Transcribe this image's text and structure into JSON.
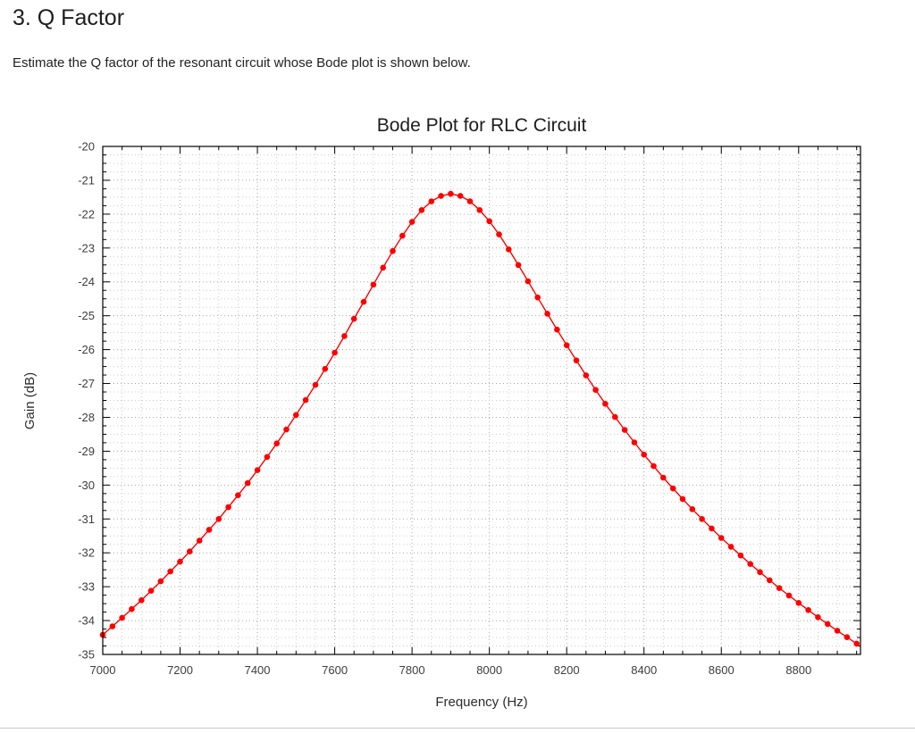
{
  "page": {
    "heading": "3. Q Factor",
    "question": "Estimate the Q factor of the resonant circuit whose Bode plot is shown below."
  },
  "chart_data": {
    "type": "line",
    "title": "Bode Plot for RLC Circuit",
    "xlabel": "Frequency (Hz)",
    "ylabel": "Gain (dB)",
    "xlim": [
      7000,
      8960
    ],
    "ylim": [
      -35,
      -20
    ],
    "x_major_ticks": [
      7000,
      7200,
      7400,
      7600,
      7800,
      8000,
      8200,
      8400,
      8600,
      8800
    ],
    "x_minor_step": 50,
    "y_major_ticks": [
      -20,
      -21,
      -22,
      -23,
      -24,
      -25,
      -26,
      -27,
      -28,
      -29,
      -30,
      -31,
      -32,
      -33,
      -34,
      -35
    ],
    "y_minor_step": 0.25,
    "grid": "dotted",
    "legend": "none",
    "line_color": "#ff0000",
    "marker": "circle",
    "series": [
      {
        "name": "Gain",
        "x": [
          7000,
          7025,
          7050,
          7075,
          7100,
          7125,
          7150,
          7175,
          7200,
          7225,
          7250,
          7275,
          7300,
          7325,
          7350,
          7375,
          7400,
          7425,
          7450,
          7475,
          7500,
          7525,
          7550,
          7575,
          7600,
          7625,
          7650,
          7675,
          7700,
          7725,
          7750,
          7775,
          7800,
          7825,
          7850,
          7875,
          7900,
          7925,
          7950,
          7975,
          8000,
          8025,
          8050,
          8075,
          8100,
          8125,
          8150,
          8175,
          8200,
          8225,
          8250,
          8275,
          8300,
          8325,
          8350,
          8375,
          8400,
          8425,
          8450,
          8475,
          8500,
          8525,
          8550,
          8575,
          8600,
          8625,
          8650,
          8675,
          8700,
          8725,
          8750,
          8775,
          8800,
          8825,
          8850,
          8875,
          8900,
          8925,
          8950
        ],
        "y": [
          -34.42,
          -34.17,
          -33.92,
          -33.66,
          -33.4,
          -33.12,
          -32.84,
          -32.55,
          -32.26,
          -31.96,
          -31.64,
          -31.32,
          -31.0,
          -30.65,
          -30.3,
          -29.94,
          -29.56,
          -29.17,
          -28.77,
          -28.36,
          -27.93,
          -27.49,
          -27.04,
          -26.57,
          -26.09,
          -25.6,
          -25.09,
          -24.59,
          -24.08,
          -23.58,
          -23.09,
          -22.64,
          -22.23,
          -21.88,
          -21.62,
          -21.46,
          -21.4,
          -21.46,
          -21.62,
          -21.88,
          -22.21,
          -22.6,
          -23.04,
          -23.5,
          -23.98,
          -24.46,
          -24.94,
          -25.41,
          -25.87,
          -26.32,
          -26.76,
          -27.19,
          -27.6,
          -27.99,
          -28.37,
          -28.74,
          -29.1,
          -29.44,
          -29.78,
          -30.1,
          -30.41,
          -30.71,
          -31.0,
          -31.28,
          -31.56,
          -31.82,
          -32.08,
          -32.33,
          -32.57,
          -32.81,
          -33.04,
          -33.26,
          -33.48,
          -33.69,
          -33.9,
          -34.1,
          -34.3,
          -34.49,
          -34.68
        ]
      }
    ]
  }
}
